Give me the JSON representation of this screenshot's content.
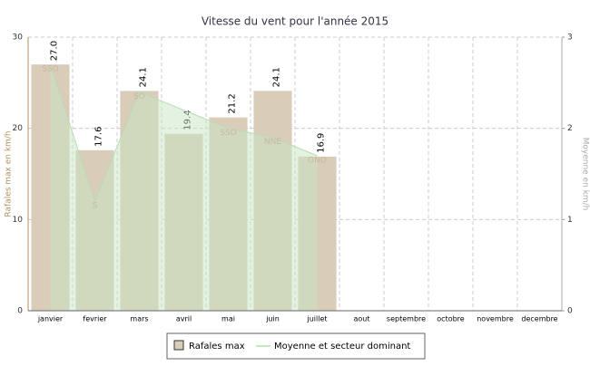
{
  "chart_data": {
    "type": "bar",
    "title": "Vitesse du vent pour l'année 2015",
    "ylabel": "Rafales max en km/h",
    "y2label": "Moyenne en km/h",
    "categories": [
      "janvier",
      "fevrier",
      "mars",
      "avril",
      "mai",
      "juin",
      "juillet",
      "aout",
      "septembre",
      "octobre",
      "novembre",
      "decembre"
    ],
    "series": [
      {
        "name": "Rafales max",
        "color": "#d9ccb9",
        "values": [
          27.0,
          17.6,
          24.1,
          19.4,
          21.2,
          24.1,
          16.9,
          null,
          null,
          null,
          null,
          null
        ],
        "value_labels": [
          "27.0",
          "17.6",
          "24.1",
          "19.4",
          "21.2",
          "24.1",
          "16.9",
          null,
          null,
          null,
          null,
          null
        ]
      },
      {
        "name": "Moyenne et secteur dominant",
        "type": "area",
        "axis": "y2",
        "color": "#c8e6c4",
        "values": [
          2.7,
          1.2,
          2.4,
          2.2,
          2.0,
          1.9,
          1.7,
          null,
          null,
          null,
          null,
          null
        ],
        "point_labels": [
          "SSO",
          "S",
          "SO",
          null,
          "SSO",
          "NNE",
          "ONO",
          null,
          null,
          null,
          null,
          null
        ]
      }
    ],
    "ylim": [
      0,
      30
    ],
    "yticks": [
      0,
      10,
      20,
      30
    ],
    "y2lim": [
      0,
      3
    ],
    "y2ticks": [
      0,
      1,
      2,
      3
    ],
    "grid": true,
    "legend": "bottom"
  }
}
